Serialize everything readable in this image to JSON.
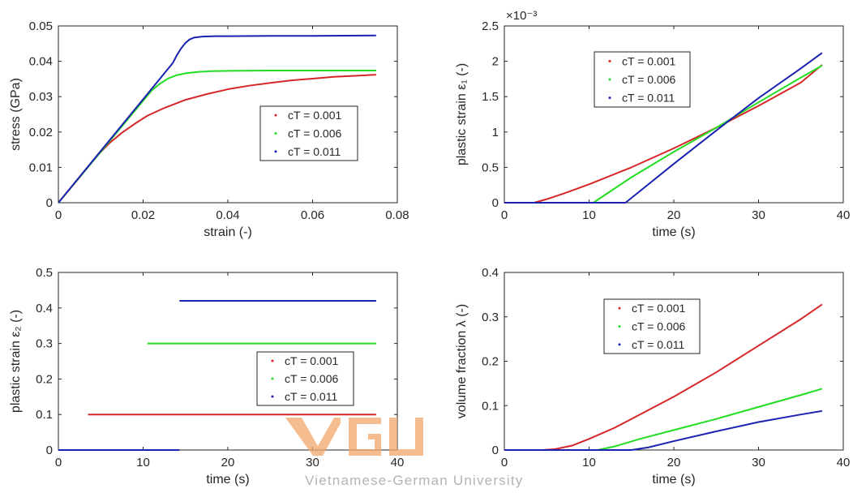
{
  "chart_data": [
    {
      "type": "line",
      "xlabel": "strain (-)",
      "ylabel": "stress (GPa)",
      "xlim": [
        0,
        0.08
      ],
      "ylim": [
        0,
        0.05
      ],
      "xticks": [
        0,
        0.02,
        0.04,
        0.06,
        0.08
      ],
      "yticks": [
        0,
        0.01,
        0.02,
        0.03,
        0.04,
        0.05
      ],
      "xtick_labels": [
        "0",
        "0.02",
        "0.04",
        "0.06",
        "0.08"
      ],
      "ytick_labels": [
        "0",
        "0.01",
        "0.02",
        "0.03",
        "0.04",
        "0.05"
      ],
      "grid": false,
      "legend_position": "center-right",
      "series": [
        {
          "name": "cT = 0.001",
          "color": "#d62728",
          "x": [
            0,
            0.005,
            0.0095,
            0.012,
            0.015,
            0.018,
            0.021,
            0.025,
            0.03,
            0.035,
            0.04,
            0.045,
            0.05,
            0.055,
            0.06,
            0.065,
            0.07,
            0.075
          ],
          "y": [
            0,
            0.0072,
            0.0137,
            0.0168,
            0.0198,
            0.0223,
            0.0246,
            0.0268,
            0.0291,
            0.0307,
            0.0321,
            0.0331,
            0.0339,
            0.0346,
            0.0351,
            0.0356,
            0.0359,
            0.0362
          ]
        },
        {
          "name": "cT = 0.006",
          "color": "#22dd22",
          "x": [
            0,
            0.022,
            0.024,
            0.026,
            0.028,
            0.03,
            0.033,
            0.036,
            0.04,
            0.05,
            0.06,
            0.075
          ],
          "y": [
            0,
            0.0317,
            0.0337,
            0.0352,
            0.0361,
            0.0366,
            0.037,
            0.0372,
            0.0373,
            0.0374,
            0.0374,
            0.0374
          ]
        },
        {
          "name": "cT = 0.011",
          "color": "#1c22b0",
          "x": [
            0,
            0.027,
            0.028,
            0.029,
            0.03,
            0.031,
            0.032,
            0.034,
            0.037,
            0.04,
            0.05,
            0.06,
            0.075
          ],
          "y": [
            0,
            0.0395,
            0.0418,
            0.0437,
            0.0452,
            0.0462,
            0.0467,
            0.047,
            0.0471,
            0.0471,
            0.0472,
            0.0472,
            0.0473
          ]
        }
      ]
    },
    {
      "type": "line",
      "xlabel": "time (s)",
      "ylabel": "plastic strain ε₁ (-)",
      "exponent_label": "×10⁻³",
      "xlim": [
        0,
        40
      ],
      "ylim": [
        0,
        2.5
      ],
      "xticks": [
        0,
        10,
        20,
        30,
        40
      ],
      "yticks": [
        0,
        0.5,
        1,
        1.5,
        2,
        2.5
      ],
      "xtick_labels": [
        "0",
        "10",
        "20",
        "30",
        "40"
      ],
      "ytick_labels": [
        "0",
        "0.5",
        "1",
        "1.5",
        "2",
        "2.5"
      ],
      "grid": false,
      "legend_position": "top-center",
      "series": [
        {
          "name": "cT = 0.001",
          "color": "#d62728",
          "x": [
            0,
            3.5,
            5,
            7,
            10,
            15,
            20,
            25,
            30,
            35,
            37.5
          ],
          "y": [
            0,
            0,
            0.05,
            0.13,
            0.26,
            0.5,
            0.77,
            1.06,
            1.37,
            1.7,
            1.95
          ]
        },
        {
          "name": "cT = 0.006",
          "color": "#22dd22",
          "x": [
            0,
            10.5,
            15,
            20,
            25,
            30,
            35,
            37.5
          ],
          "y": [
            0,
            0,
            0.36,
            0.72,
            1.06,
            1.42,
            1.77,
            1.94
          ]
        },
        {
          "name": "cT = 0.011",
          "color": "#1c22b0",
          "x": [
            0,
            14.3,
            20,
            25,
            30,
            35,
            37.5
          ],
          "y": [
            0,
            0,
            0.55,
            1.02,
            1.48,
            1.9,
            2.12
          ]
        }
      ]
    },
    {
      "type": "line",
      "xlabel": "time (s)",
      "ylabel": "plastic strain ε₂ (-)",
      "xlim": [
        0,
        40
      ],
      "ylim": [
        0,
        0.5
      ],
      "xticks": [
        0,
        10,
        20,
        30,
        40
      ],
      "yticks": [
        0,
        0.1,
        0.2,
        0.3,
        0.4,
        0.5
      ],
      "xtick_labels": [
        "0",
        "10",
        "20",
        "30",
        "40"
      ],
      "ytick_labels": [
        "0",
        "0.1",
        "0.2",
        "0.3",
        "0.4",
        "0.5"
      ],
      "grid": false,
      "legend_position": "center-right",
      "series": [
        {
          "name": "cT = 0.001",
          "color": "#d62728",
          "segments": [
            {
              "x": [
                0,
                3.5
              ],
              "y": [
                0,
                0
              ]
            },
            {
              "x": [
                3.5,
                37.5
              ],
              "y": [
                0.1,
                0.1
              ]
            }
          ]
        },
        {
          "name": "cT = 0.006",
          "color": "#22dd22",
          "segments": [
            {
              "x": [
                0,
                10.5
              ],
              "y": [
                0,
                0
              ]
            },
            {
              "x": [
                10.5,
                37.5
              ],
              "y": [
                0.3,
                0.3
              ]
            }
          ]
        },
        {
          "name": "cT = 0.011",
          "color": "#1c22b0",
          "segments": [
            {
              "x": [
                0,
                14.3
              ],
              "y": [
                0,
                0
              ]
            },
            {
              "x": [
                14.3,
                37.5
              ],
              "y": [
                0.42,
                0.42
              ]
            }
          ]
        }
      ]
    },
    {
      "type": "line",
      "xlabel": "time (s)",
      "ylabel": "volume fraction λ (-)",
      "xlim": [
        0,
        40
      ],
      "ylim": [
        0,
        0.4
      ],
      "xticks": [
        0,
        10,
        20,
        30,
        40
      ],
      "yticks": [
        0,
        0.1,
        0.2,
        0.3,
        0.4
      ],
      "xtick_labels": [
        "0",
        "10",
        "20",
        "30",
        "40"
      ],
      "ytick_labels": [
        "0",
        "0.1",
        "0.2",
        "0.3",
        "0.4"
      ],
      "grid": false,
      "legend_position": "top-center",
      "series": [
        {
          "name": "cT = 0.001",
          "color": "#d62728",
          "x": [
            0,
            4.5,
            6,
            8,
            10,
            13,
            16,
            20,
            25,
            30,
            35,
            37.5
          ],
          "y": [
            0,
            0,
            0.002,
            0.01,
            0.025,
            0.05,
            0.08,
            0.12,
            0.175,
            0.235,
            0.295,
            0.328
          ]
        },
        {
          "name": "cT = 0.006",
          "color": "#22dd22",
          "x": [
            0,
            11,
            13,
            16,
            20,
            25,
            30,
            35,
            37.5
          ],
          "y": [
            0,
            0,
            0.008,
            0.025,
            0.045,
            0.07,
            0.097,
            0.124,
            0.138
          ]
        },
        {
          "name": "cT = 0.011",
          "color": "#1c22b0",
          "x": [
            0,
            15,
            17,
            20,
            25,
            30,
            35,
            37.5
          ],
          "y": [
            0,
            0,
            0.006,
            0.02,
            0.042,
            0.063,
            0.08,
            0.088
          ]
        }
      ]
    }
  ],
  "watermark": {
    "logo_text": "VGU",
    "caption": "Vietnamese-German University",
    "color": "#f2a66a"
  }
}
